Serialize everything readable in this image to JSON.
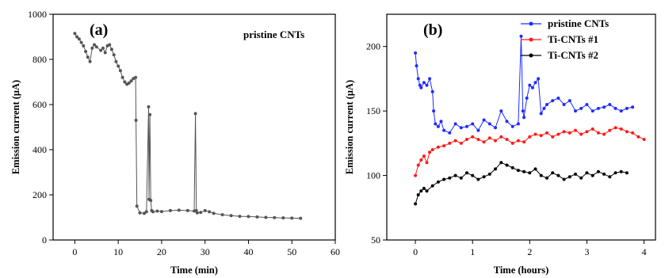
{
  "chart_data": [
    {
      "panel_label": "(a)",
      "type": "line",
      "legend": [
        "pristine CNTs"
      ],
      "xlabel": "Time (min)",
      "ylabel": "Emission current (μA)",
      "xlim": [
        -5,
        60
      ],
      "ylim": [
        0,
        1000
      ],
      "xticks": [
        0,
        10,
        20,
        30,
        40,
        50,
        60
      ],
      "yticks": [
        0,
        200,
        400,
        600,
        800,
        1000
      ],
      "series": [
        {
          "name": "pristine CNTs",
          "color": "#555555",
          "x": [
            0,
            0.5,
            1,
            1.5,
            2,
            2.5,
            3,
            3.5,
            4,
            4.5,
            5,
            6,
            6.5,
            7,
            7.5,
            8,
            8.5,
            9,
            9.5,
            10,
            10.5,
            11,
            11.5,
            12,
            12.5,
            13,
            13.5,
            14,
            14.1,
            14.3,
            15,
            16,
            16.5,
            17,
            17.1,
            17.3,
            17.5,
            17.7,
            18,
            19,
            20,
            22,
            24,
            26,
            27.5,
            27.8,
            28,
            28.2,
            29,
            30,
            31,
            32,
            34,
            36,
            38,
            40,
            42,
            44,
            46,
            48,
            50,
            52
          ],
          "y": [
            915,
            900,
            890,
            875,
            860,
            835,
            810,
            790,
            850,
            865,
            855,
            840,
            850,
            830,
            860,
            865,
            845,
            820,
            790,
            770,
            750,
            720,
            700,
            690,
            695,
            705,
            715,
            720,
            530,
            150,
            120,
            118,
            125,
            590,
            180,
            555,
            175,
            130,
            125,
            128,
            126,
            130,
            132,
            130,
            128,
            560,
            130,
            120,
            122,
            130,
            125,
            118,
            112,
            108,
            105,
            104,
            102,
            100,
            99,
            98,
            97,
            96
          ]
        }
      ]
    },
    {
      "panel_label": "(b)",
      "type": "line",
      "xlabel": "Time (hours)",
      "ylabel": "Emission current (μA)",
      "xlim": [
        -0.5,
        4.2
      ],
      "ylim": [
        50,
        225
      ],
      "xticks": [
        0,
        1,
        2,
        3,
        4
      ],
      "yticks": [
        50,
        100,
        150,
        200
      ],
      "legend_position": "top-right",
      "series": [
        {
          "name": "pristine CNTs",
          "color": "#1f2bff",
          "x": [
            0,
            0.02,
            0.05,
            0.08,
            0.1,
            0.15,
            0.2,
            0.25,
            0.3,
            0.32,
            0.35,
            0.4,
            0.45,
            0.5,
            0.6,
            0.7,
            0.8,
            0.9,
            1.0,
            1.1,
            1.2,
            1.3,
            1.4,
            1.5,
            1.6,
            1.7,
            1.8,
            1.85,
            1.88,
            1.9,
            1.95,
            2.0,
            2.05,
            2.1,
            2.15,
            2.2,
            2.25,
            2.3,
            2.4,
            2.5,
            2.6,
            2.7,
            2.8,
            2.9,
            3.0,
            3.1,
            3.2,
            3.3,
            3.4,
            3.5,
            3.6,
            3.7,
            3.8
          ],
          "y": [
            195,
            185,
            175,
            170,
            168,
            172,
            170,
            175,
            165,
            150,
            140,
            138,
            142,
            135,
            133,
            140,
            137,
            138,
            140,
            135,
            143,
            140,
            137,
            150,
            142,
            138,
            140,
            208,
            150,
            145,
            160,
            170,
            168,
            172,
            175,
            148,
            152,
            155,
            158,
            160,
            155,
            158,
            150,
            152,
            155,
            150,
            152,
            153,
            155,
            152,
            150,
            152,
            153
          ]
        },
        {
          "name": "Ti-CNTs #1",
          "color": "#ff1a1a",
          "x": [
            0,
            0.05,
            0.1,
            0.15,
            0.2,
            0.25,
            0.3,
            0.4,
            0.5,
            0.6,
            0.7,
            0.8,
            0.9,
            1.0,
            1.1,
            1.2,
            1.3,
            1.4,
            1.5,
            1.6,
            1.7,
            1.8,
            1.9,
            2.0,
            2.1,
            2.2,
            2.3,
            2.4,
            2.5,
            2.6,
            2.7,
            2.8,
            2.9,
            3.0,
            3.1,
            3.2,
            3.3,
            3.4,
            3.5,
            3.6,
            3.7,
            3.8,
            3.9,
            4.0
          ],
          "y": [
            100,
            108,
            112,
            115,
            110,
            118,
            120,
            122,
            123,
            125,
            127,
            125,
            128,
            130,
            128,
            126,
            129,
            127,
            130,
            128,
            125,
            127,
            126,
            130,
            132,
            131,
            133,
            130,
            132,
            134,
            133,
            135,
            132,
            134,
            136,
            133,
            132,
            135,
            137,
            136,
            134,
            133,
            130,
            128
          ]
        },
        {
          "name": "Ti-CNTs #2",
          "color": "#000000",
          "x": [
            0,
            0.05,
            0.1,
            0.15,
            0.2,
            0.3,
            0.4,
            0.5,
            0.6,
            0.7,
            0.8,
            0.9,
            1.0,
            1.1,
            1.2,
            1.3,
            1.4,
            1.5,
            1.6,
            1.7,
            1.8,
            1.9,
            2.0,
            2.1,
            2.2,
            2.3,
            2.4,
            2.5,
            2.6,
            2.7,
            2.8,
            2.9,
            3.0,
            3.1,
            3.2,
            3.3,
            3.4,
            3.5,
            3.6,
            3.7
          ],
          "y": [
            78,
            85,
            88,
            90,
            88,
            92,
            95,
            97,
            98,
            100,
            98,
            102,
            100,
            97,
            99,
            101,
            105,
            110,
            108,
            106,
            104,
            103,
            102,
            105,
            100,
            98,
            102,
            100,
            97,
            99,
            101,
            98,
            102,
            100,
            103,
            101,
            99,
            102,
            103,
            102
          ]
        }
      ]
    }
  ]
}
